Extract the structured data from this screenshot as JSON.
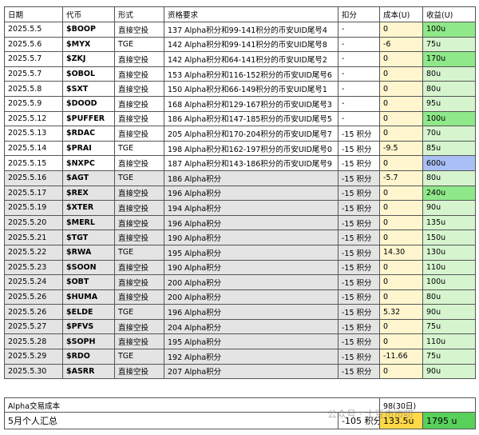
{
  "table": {
    "columns": [
      "日期",
      "代币",
      "形式",
      "资格要求",
      "扣分",
      "成本(U)",
      "收益(U)"
    ],
    "rows": [
      [
        "2025.5.5",
        "$BOOP",
        "直接空投",
        "137 Alpha积分和99-141积分的币安UID尾号4",
        "-",
        "0",
        "100u"
      ],
      [
        "2025.5.6",
        "$MYX",
        "TGE",
        "142 Alpha积分和99-141积分的币安UID尾号8",
        "-",
        "-6",
        "75u"
      ],
      [
        "2025.5.7",
        "$ZKJ",
        "直接空投",
        "142 Alpha积分和64-141积分的币安UID尾号2",
        "-",
        "0",
        "170u"
      ],
      [
        "2025.5.7",
        "$OBOL",
        "直接空投",
        "153 Alpha积分和116-152积分的币安UID尾号6",
        "-",
        "0",
        "80u"
      ],
      [
        "2025.5.8",
        "$SXT",
        "直接空投",
        "150 Alpha积分和66-149积分的币安UID尾号1",
        "-",
        "0",
        "80u"
      ],
      [
        "2025.5.9",
        "$DOOD",
        "直接空投",
        "168 Alpha积分和129-167积分的币安UID尾号3",
        "-",
        "0",
        "95u"
      ],
      [
        "2025.5.12",
        "$PUFFER",
        "直接空投",
        "186 Alpha积分和147-185积分的币安UID尾号5",
        "-",
        "0",
        "100u"
      ],
      [
        "2025.5.13",
        "$RDAC",
        "直接空投",
        "205 Alpha积分和170-204积分的币安UID尾号7",
        "-15 积分",
        "0",
        "70u"
      ],
      [
        "2025.5.14",
        "$PRAI",
        "TGE",
        "198 Alpha积分和162-197积分的币安UID尾号0",
        "-15 积分",
        "-9.5",
        "85u"
      ],
      [
        "2025.5.15",
        "$NXPC",
        "直接空投",
        "187 Alpha积分和143-186积分的币安UID尾号9",
        "-15 积分",
        "0",
        "600u"
      ],
      [
        "2025.5.16",
        "$AGT",
        "TGE",
        "186 Alpha积分",
        "-15 积分",
        "-5.7",
        "80u"
      ],
      [
        "2025.5.17",
        "$REX",
        "直接空投",
        "196 Alpha积分",
        "-15 积分",
        "0",
        "240u"
      ],
      [
        "2025.5.19",
        "$XTER",
        "直接空投",
        "194 Alpha积分",
        "-15 积分",
        "0",
        "90u"
      ],
      [
        "2025.5.20",
        "$MERL",
        "直接空投",
        "196 Alpha积分",
        "-15 积分",
        "0",
        "135u"
      ],
      [
        "2025.5.21",
        "$TGT",
        "直接空投",
        "190 Alpha积分",
        "-15 积分",
        "0",
        "150u"
      ],
      [
        "2025.5.22",
        "$RWA",
        "TGE",
        "195 Alpha积分",
        "-15 积分",
        "14.30",
        "130u"
      ],
      [
        "2025.5.23",
        "$SOON",
        "直接空投",
        "190 Alpha积分",
        "-15 积分",
        "0",
        "110u"
      ],
      [
        "2025.5.24",
        "$OBT",
        "直接空投",
        "200 Alpha积分",
        "-15 积分",
        "0",
        "100u"
      ],
      [
        "2025.5.26",
        "$HUMA",
        "直接空投",
        "200 Alpha积分",
        "-15 积分",
        "0",
        "80u"
      ],
      [
        "2025.5.26",
        "$ELDE",
        "TGE",
        "196 Alpha积分",
        "-15 积分",
        "5.32",
        "90u"
      ],
      [
        "2025.5.27",
        "$PFVS",
        "直接空投",
        "204 Alpha积分",
        "-15 积分",
        "0",
        "75u"
      ],
      [
        "2025.5.28",
        "$SOPH",
        "直接空投",
        "195 Alpha积分",
        "-15 积分",
        "0",
        "110u"
      ],
      [
        "2025.5.29",
        "$RDO",
        "TGE",
        "192 Alpha积分",
        "-15 积分",
        "-11.66",
        "75u"
      ],
      [
        "2025.5.30",
        "$ASRR",
        "直接空投",
        "207 Alpha积分",
        "-15 积分",
        "0",
        "90u"
      ]
    ]
  },
  "footer": {
    "cost_label": "Alpha交易成本",
    "cost_value": "98(30日)",
    "summary_label": "5月个人汇总",
    "summary_points": "-105 积分",
    "summary_cost": "133.5u",
    "summary_income": "1795 u"
  },
  "watermark": "公众号 · 土豆市市叨"
}
